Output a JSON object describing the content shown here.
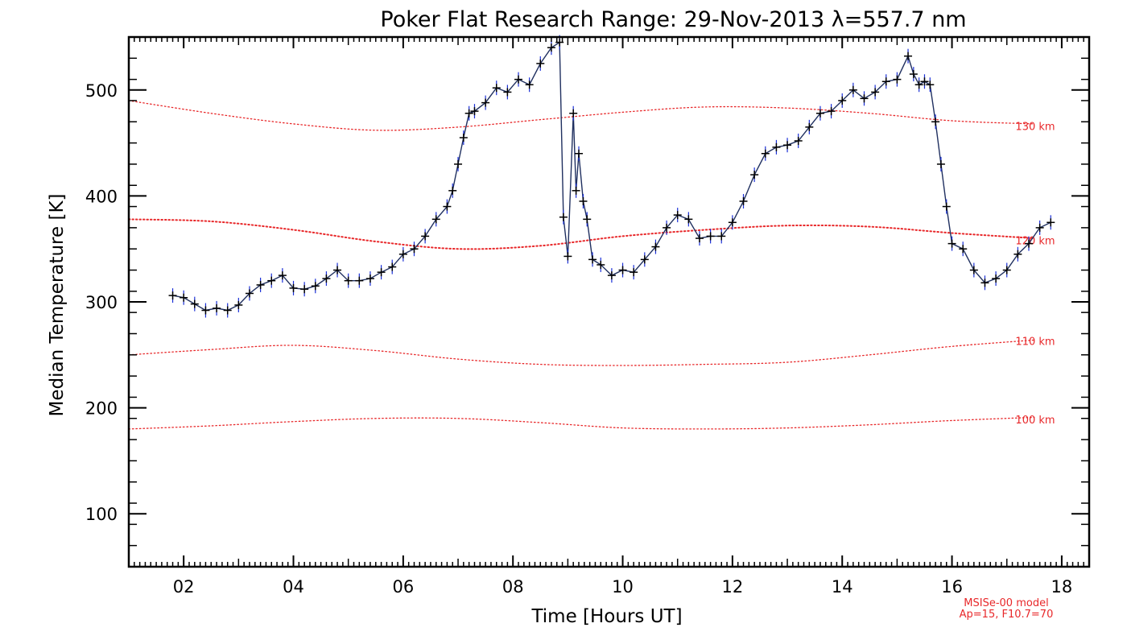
{
  "chart_data": {
    "type": "line",
    "title": "Poker Flat Research Range: 29-Nov-2013 λ=557.7 nm",
    "xlabel": "Time [Hours UT]",
    "ylabel": "Median Temperature [K]",
    "xlim": [
      1.0,
      18.5
    ],
    "ylim": [
      50,
      550
    ],
    "x_ticks": [
      2,
      4,
      6,
      8,
      10,
      12,
      14,
      16,
      18
    ],
    "x_tick_labels": [
      "02",
      "04",
      "06",
      "08",
      "10",
      "12",
      "14",
      "16",
      "18"
    ],
    "y_ticks": [
      100,
      200,
      300,
      400,
      500
    ],
    "y_tick_labels": [
      "100",
      "200",
      "300",
      "400",
      "500"
    ],
    "grid": false,
    "colors": {
      "data": "#000000",
      "errorbar": "#1a2fd6",
      "model": "#e8282a",
      "axes": "#000000"
    },
    "series": [
      {
        "marker": "+",
        "x": [
          1.8,
          2.0,
          2.2,
          2.4,
          2.6,
          2.8,
          3.0,
          3.2,
          3.4,
          3.6,
          3.8,
          4.0,
          4.2,
          4.4,
          4.6,
          4.8,
          5.0,
          5.2,
          5.4,
          5.6,
          5.8,
          6.0,
          6.2,
          6.4,
          6.6,
          6.8,
          6.9,
          7.0,
          7.1,
          7.2,
          7.3,
          7.5,
          7.7,
          7.9,
          8.1,
          8.3,
          8.5,
          8.7,
          8.85,
          8.92,
          9.0,
          9.1,
          9.15,
          9.2,
          9.28,
          9.35,
          9.45,
          9.6,
          9.8,
          10.0,
          10.2,
          10.4,
          10.6,
          10.8,
          11.0,
          11.2,
          11.4,
          11.6,
          11.8,
          12.0,
          12.2,
          12.4,
          12.6,
          12.8,
          13.0,
          13.2,
          13.4,
          13.6,
          13.8,
          14.0,
          14.2,
          14.4,
          14.6,
          14.8,
          15.0,
          15.2,
          15.3,
          15.4,
          15.5,
          15.6,
          15.7,
          15.8,
          15.9,
          16.0,
          16.2,
          16.4,
          16.6,
          16.8,
          17.0,
          17.2,
          17.4,
          17.6,
          17.8
        ],
        "values": [
          306,
          304,
          298,
          292,
          294,
          292,
          297,
          308,
          316,
          320,
          325,
          313,
          312,
          315,
          322,
          330,
          320,
          320,
          322,
          328,
          333,
          345,
          350,
          362,
          378,
          390,
          405,
          430,
          455,
          478,
          480,
          488,
          502,
          498,
          510,
          505,
          525,
          540,
          545,
          380,
          343,
          478,
          405,
          440,
          395,
          378,
          340,
          335,
          325,
          330,
          328,
          340,
          352,
          370,
          382,
          378,
          360,
          362,
          362,
          375,
          395,
          420,
          440,
          446,
          448,
          452,
          465,
          478,
          480,
          490,
          500,
          492,
          498,
          508,
          510,
          532,
          515,
          505,
          508,
          505,
          470,
          430,
          390,
          355,
          350,
          330,
          318,
          322,
          330,
          345,
          355,
          370,
          375
        ]
      }
    ],
    "model_curves": [
      {
        "label": "130 km",
        "x": [
          1.0,
          2.5,
          4.0,
          5.5,
          7.0,
          8.5,
          10.0,
          11.5,
          13.0,
          14.5,
          16.0,
          17.5
        ],
        "values": [
          490,
          478,
          468,
          462,
          465,
          472,
          479,
          484,
          483,
          478,
          471,
          468
        ]
      },
      {
        "label": "120 km",
        "x": [
          1.0,
          2.5,
          4.0,
          5.5,
          7.0,
          8.5,
          10.0,
          11.5,
          13.0,
          14.5,
          16.0,
          17.5
        ],
        "values": [
          378,
          376,
          368,
          357,
          350,
          353,
          362,
          368,
          372,
          371,
          365,
          360
        ]
      },
      {
        "label": "110 km",
        "x": [
          1.0,
          2.5,
          4.0,
          5.5,
          7.0,
          8.5,
          10.0,
          11.5,
          13.0,
          14.5,
          16.0,
          17.5
        ],
        "values": [
          250,
          255,
          259,
          254,
          246,
          241,
          240,
          241,
          243,
          250,
          258,
          264
        ]
      },
      {
        "label": "100 km",
        "x": [
          1.0,
          2.5,
          4.0,
          5.5,
          7.0,
          8.5,
          10.0,
          11.5,
          13.0,
          14.5,
          16.0,
          17.5
        ],
        "values": [
          180,
          183,
          187,
          190,
          190,
          186,
          181,
          180,
          181,
          184,
          188,
          191
        ]
      }
    ],
    "model_label_positions": {
      "130 km": 466,
      "120 km": 358,
      "110 km": 263,
      "100 km": 189
    },
    "annotations": [
      "MSISe-00 model",
      "Ap=15, F10.7=70"
    ]
  }
}
